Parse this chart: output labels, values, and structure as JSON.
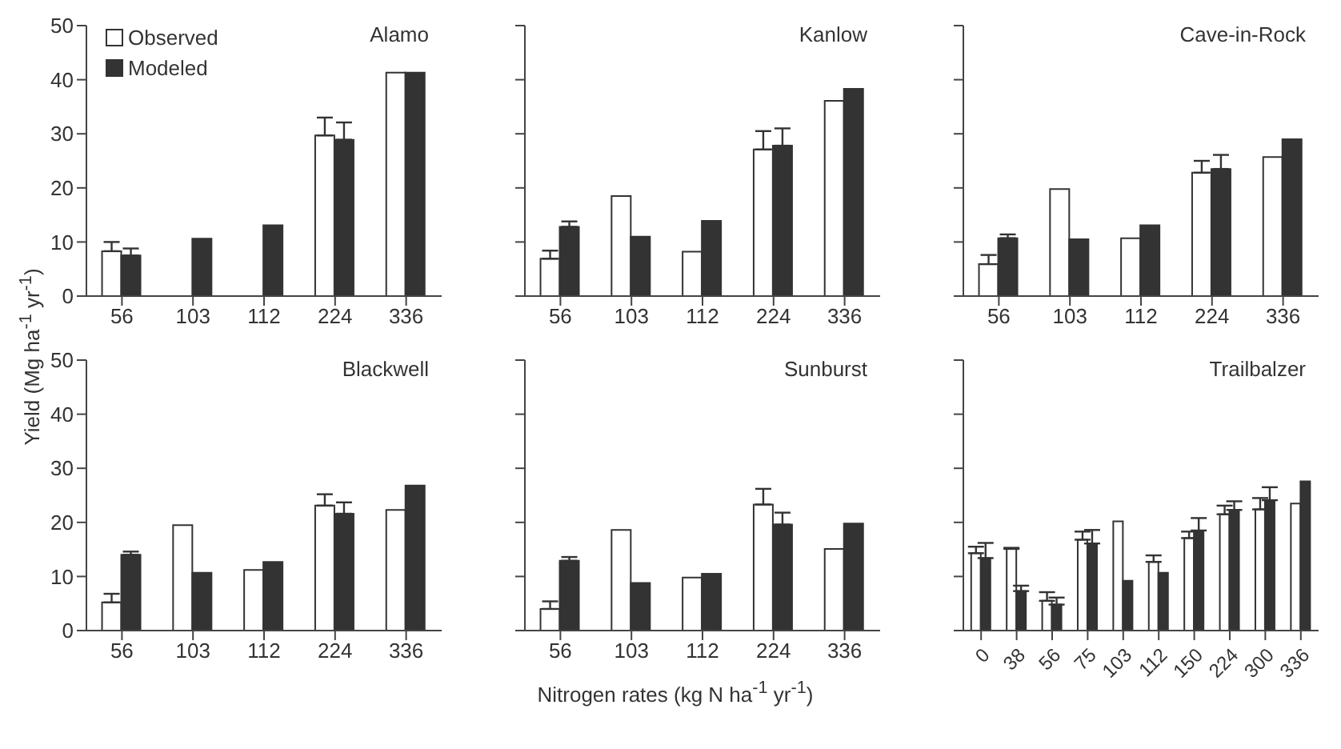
{
  "chart_data": [
    {
      "type": "bar",
      "title": "Alamo",
      "ylabel": "Yield (Mg ha$^{-1}$ yr$^{-1}$)",
      "categories": [
        "56",
        "103",
        "112",
        "224",
        "336"
      ],
      "ylim": [
        0,
        50
      ],
      "yticks": [
        0,
        10,
        20,
        30,
        40,
        50
      ],
      "legend": "top left",
      "grid": false,
      "series": [
        {
          "name": "Observed",
          "color": "#ffffff",
          "values": [
            8.3,
            null,
            null,
            29.7,
            41.3
          ],
          "errors": [
            [
              8.3,
              10.0
            ],
            null,
            null,
            [
              29.7,
              33.0
            ],
            null
          ]
        },
        {
          "name": "Modeled",
          "color": "#333333",
          "values": [
            7.5,
            10.6,
            13.1,
            28.9,
            41.3
          ],
          "errors": [
            [
              7.5,
              8.8
            ],
            null,
            null,
            [
              28.9,
              32.1
            ],
            null
          ]
        }
      ]
    },
    {
      "type": "bar",
      "title": "Kanlow",
      "categories": [
        "56",
        "103",
        "112",
        "224",
        "336"
      ],
      "ylim": [
        0,
        50
      ],
      "yticks": [
        0,
        10,
        20,
        30,
        40,
        50
      ],
      "tick_labels": "x",
      "grid": false,
      "series": [
        {
          "color": "#ffffff",
          "values": [
            6.9,
            18.5,
            8.2,
            27.1,
            36.1
          ],
          "errors": [
            [
              6.9,
              8.4
            ],
            null,
            null,
            [
              27.1,
              30.5
            ],
            null
          ]
        },
        {
          "color": "#333333",
          "values": [
            12.8,
            11.0,
            13.9,
            27.8,
            38.3
          ],
          "errors": [
            [
              12.8,
              13.8
            ],
            null,
            null,
            [
              27.8,
              31.0
            ],
            null
          ]
        }
      ]
    },
    {
      "type": "bar",
      "title": "Cave-in-Rock",
      "categories": [
        "56",
        "103",
        "112",
        "224",
        "336"
      ],
      "ylim": [
        0,
        50
      ],
      "yticks": [
        0,
        10,
        20,
        30,
        40,
        50
      ],
      "tick_labels": "x",
      "grid": false,
      "series": [
        {
          "color": "#ffffff",
          "values": [
            5.9,
            19.8,
            10.7,
            22.8,
            25.7
          ],
          "errors": [
            [
              5.9,
              7.6
            ],
            null,
            null,
            [
              22.8,
              25.0
            ],
            null
          ]
        },
        {
          "color": "#333333",
          "values": [
            10.7,
            10.5,
            13.1,
            23.5,
            29.0
          ],
          "errors": [
            [
              10.7,
              11.4
            ],
            null,
            null,
            [
              23.5,
              26.1
            ],
            null
          ]
        }
      ]
    },
    {
      "type": "bar",
      "title": "Blackwell",
      "categories": [
        "56",
        "103",
        "112",
        "224",
        "336"
      ],
      "ylim": [
        0,
        50
      ],
      "yticks": [
        0,
        10,
        20,
        30,
        40,
        50
      ],
      "grid": false,
      "series": [
        {
          "color": "#ffffff",
          "values": [
            5.2,
            19.5,
            11.2,
            23.1,
            22.3
          ],
          "errors": [
            [
              5.2,
              6.8
            ],
            null,
            null,
            [
              23.1,
              25.2
            ],
            null
          ]
        },
        {
          "color": "#333333",
          "values": [
            14.0,
            10.7,
            12.7,
            21.6,
            26.8
          ],
          "errors": [
            [
              14.0,
              14.6
            ],
            null,
            null,
            [
              21.6,
              23.7
            ],
            null
          ]
        }
      ]
    },
    {
      "type": "bar",
      "title": "Sunburst",
      "xlabel": "Nitrogen rates (kg N ha$^{-1}$ yr$^{-1}$)",
      "categories": [
        "56",
        "103",
        "112",
        "224",
        "336"
      ],
      "ylim": [
        0,
        50
      ],
      "yticks": [
        0,
        10,
        20,
        30,
        40,
        50
      ],
      "tick_labels": "x",
      "grid": false,
      "series": [
        {
          "color": "#ffffff",
          "values": [
            4.0,
            18.6,
            9.8,
            23.3,
            15.1
          ],
          "errors": [
            [
              4.0,
              5.4
            ],
            null,
            null,
            [
              23.3,
              26.2
            ],
            null
          ]
        },
        {
          "color": "#333333",
          "values": [
            12.9,
            8.8,
            10.5,
            19.6,
            19.8
          ],
          "errors": [
            [
              12.9,
              13.6
            ],
            null,
            null,
            [
              19.6,
              21.8
            ],
            null
          ]
        }
      ]
    },
    {
      "type": "bar",
      "title": "Trailbalzer",
      "categories": [
        "0",
        "38",
        "56",
        "75",
        "103",
        "112",
        "150",
        "224",
        "300",
        "336"
      ],
      "ylim": [
        0,
        50
      ],
      "yticks": [
        0,
        10,
        20,
        30,
        40,
        50
      ],
      "tick_labels": "x",
      "grid": false,
      "series": [
        {
          "color": "#ffffff",
          "values": [
            14.3,
            15.1,
            5.5,
            16.8,
            20.2,
            12.7,
            17.1,
            21.5,
            22.4,
            23.5
          ],
          "errors": [
            [
              14.3,
              15.5
            ],
            [
              15.1,
              15.3
            ],
            [
              5.5,
              7.1
            ],
            [
              16.8,
              18.3
            ],
            null,
            [
              12.7,
              13.9
            ],
            [
              17.1,
              18.3
            ],
            [
              21.5,
              23.1
            ],
            [
              22.4,
              24.5
            ],
            null
          ]
        },
        {
          "color": "#333333",
          "values": [
            13.4,
            7.3,
            4.8,
            16.1,
            9.2,
            10.7,
            18.5,
            22.3,
            24.1,
            27.6
          ],
          "errors": [
            [
              13.4,
              16.2
            ],
            [
              7.3,
              8.3
            ],
            [
              4.8,
              6.1
            ],
            [
              16.1,
              18.6
            ],
            null,
            null,
            [
              18.5,
              20.8
            ],
            [
              22.3,
              23.9
            ],
            [
              24.1,
              26.5
            ],
            null
          ]
        }
      ]
    }
  ]
}
